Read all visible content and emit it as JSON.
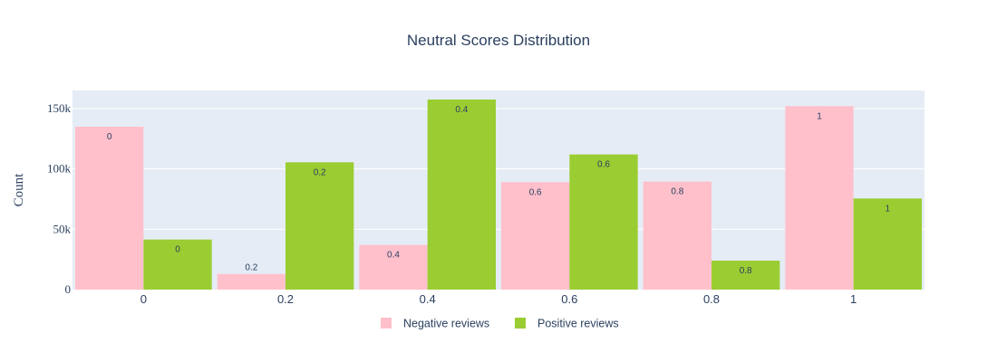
{
  "chart_data": {
    "type": "bar",
    "title": "Neutral Scores Distribution",
    "xlabel": "",
    "ylabel": "Count",
    "categories": [
      "0",
      "0.2",
      "0.4",
      "0.6",
      "0.8",
      "1"
    ],
    "series": [
      {
        "name": "Negative reviews",
        "color": "#ffc0cb",
        "values": [
          135000,
          13000,
          37000,
          89000,
          89500,
          152000
        ],
        "labels": [
          "0",
          "0.2",
          "0.4",
          "0.6",
          "0.8",
          "1"
        ]
      },
      {
        "name": "Positive reviews",
        "color": "#9acd32",
        "values": [
          41500,
          105500,
          157500,
          112000,
          24000,
          75500
        ],
        "labels": [
          "0",
          "0.2",
          "0.4",
          "0.6",
          "0.8",
          "1"
        ]
      }
    ],
    "ylim": [
      0,
      165000
    ],
    "yticks": [
      0,
      50000,
      100000,
      150000
    ],
    "ytick_labels": [
      "0",
      "50k",
      "100k",
      "150k"
    ],
    "grid": true,
    "plot_background": "#e5ecf6",
    "legend_position": "bottom-center"
  }
}
